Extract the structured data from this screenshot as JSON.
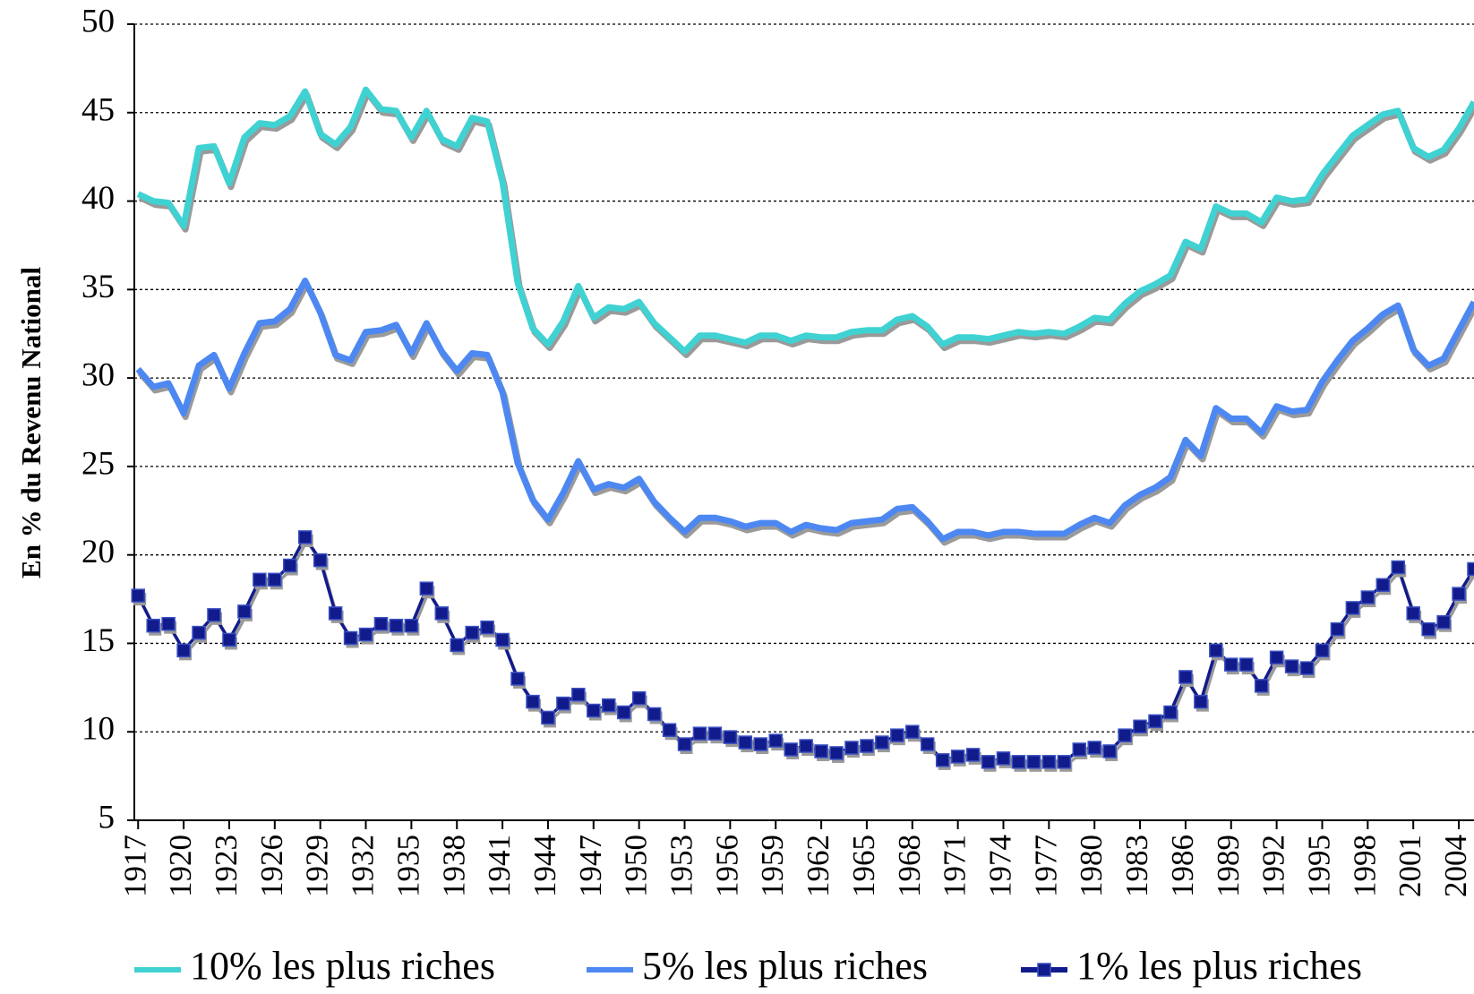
{
  "chart_data": {
    "type": "line",
    "y_label": "En % du Revenu National",
    "x": [
      1917,
      1918,
      1919,
      1920,
      1921,
      1922,
      1923,
      1924,
      1925,
      1926,
      1927,
      1928,
      1929,
      1930,
      1931,
      1932,
      1933,
      1934,
      1935,
      1936,
      1937,
      1938,
      1939,
      1940,
      1941,
      1942,
      1943,
      1944,
      1945,
      1946,
      1947,
      1948,
      1949,
      1950,
      1951,
      1952,
      1953,
      1954,
      1955,
      1956,
      1957,
      1958,
      1959,
      1960,
      1961,
      1962,
      1963,
      1964,
      1965,
      1966,
      1967,
      1968,
      1969,
      1970,
      1971,
      1972,
      1973,
      1974,
      1975,
      1976,
      1977,
      1978,
      1979,
      1980,
      1981,
      1982,
      1983,
      1984,
      1985,
      1986,
      1987,
      1988,
      1989,
      1990,
      1991,
      1992,
      1993,
      1994,
      1995,
      1996,
      1997,
      1998,
      1999,
      2000,
      2001,
      2002,
      2003,
      2004,
      2005
    ],
    "series": [
      {
        "name": "10% les plus riches",
        "color": "#40d2d2",
        "marker": "none",
        "values": [
          40.4,
          40.0,
          39.9,
          38.6,
          43.0,
          43.1,
          41.0,
          43.6,
          44.4,
          44.3,
          44.8,
          46.2,
          43.8,
          43.2,
          44.2,
          46.3,
          45.2,
          45.1,
          43.6,
          45.1,
          43.5,
          43.1,
          44.7,
          44.5,
          41.1,
          35.4,
          32.8,
          31.9,
          33.2,
          35.2,
          33.4,
          34.0,
          33.9,
          34.3,
          33.1,
          32.3,
          31.5,
          32.4,
          32.4,
          32.2,
          32.0,
          32.4,
          32.4,
          32.1,
          32.4,
          32.3,
          32.3,
          32.6,
          32.7,
          32.7,
          33.3,
          33.5,
          32.9,
          31.9,
          32.3,
          32.3,
          32.2,
          32.4,
          32.6,
          32.5,
          32.6,
          32.5,
          32.9,
          33.4,
          33.3,
          34.2,
          34.9,
          35.3,
          35.8,
          37.7,
          37.3,
          39.7,
          39.3,
          39.3,
          38.8,
          40.2,
          40.0,
          40.1,
          41.5,
          42.6,
          43.7,
          44.3,
          44.9,
          45.1,
          43.0,
          42.5,
          42.9,
          44.1,
          45.6
        ]
      },
      {
        "name": "5% les plus riches",
        "color": "#4d88f2",
        "marker": "none",
        "values": [
          30.5,
          29.5,
          29.7,
          28.0,
          30.7,
          31.3,
          29.4,
          31.4,
          33.1,
          33.2,
          33.9,
          35.5,
          33.7,
          31.3,
          31.0,
          32.6,
          32.7,
          33.0,
          31.4,
          33.1,
          31.5,
          30.4,
          31.4,
          31.3,
          29.2,
          25.2,
          23.1,
          22.0,
          23.5,
          25.3,
          23.7,
          24.0,
          23.8,
          24.3,
          23.0,
          22.1,
          21.3,
          22.1,
          22.1,
          21.9,
          21.6,
          21.8,
          21.8,
          21.3,
          21.7,
          21.5,
          21.4,
          21.8,
          21.9,
          22.0,
          22.6,
          22.7,
          21.9,
          20.9,
          21.3,
          21.3,
          21.1,
          21.3,
          21.3,
          21.2,
          21.2,
          21.2,
          21.7,
          22.1,
          21.8,
          22.8,
          23.4,
          23.8,
          24.4,
          26.5,
          25.6,
          28.3,
          27.7,
          27.7,
          26.9,
          28.4,
          28.1,
          28.2,
          29.8,
          31.0,
          32.1,
          32.8,
          33.6,
          34.1,
          31.6,
          30.7,
          31.1,
          32.7,
          34.3
        ]
      },
      {
        "name": "1% les plus riches",
        "color": "#111b8c",
        "marker": "square",
        "values": [
          17.7,
          16.0,
          16.1,
          14.6,
          15.6,
          16.6,
          15.2,
          16.8,
          18.6,
          18.6,
          19.4,
          21.0,
          19.7,
          16.7,
          15.3,
          15.5,
          16.1,
          16.0,
          16.0,
          18.1,
          16.7,
          14.9,
          15.6,
          15.9,
          15.2,
          13.0,
          11.7,
          10.8,
          11.6,
          12.1,
          11.2,
          11.5,
          11.1,
          11.9,
          11.0,
          10.1,
          9.3,
          9.9,
          9.9,
          9.7,
          9.4,
          9.3,
          9.5,
          9.0,
          9.2,
          8.9,
          8.8,
          9.1,
          9.2,
          9.4,
          9.8,
          10.0,
          9.3,
          8.4,
          8.6,
          8.7,
          8.3,
          8.5,
          8.3,
          8.3,
          8.3,
          8.3,
          9.0,
          9.1,
          8.9,
          9.8,
          10.3,
          10.6,
          11.1,
          13.1,
          11.7,
          14.6,
          13.8,
          13.8,
          12.6,
          14.2,
          13.7,
          13.6,
          14.6,
          15.8,
          17.0,
          17.6,
          18.3,
          19.3,
          16.7,
          15.8,
          16.2,
          17.8,
          19.2
        ]
      }
    ],
    "xlim": [
      1916.75,
      2005
    ],
    "xticks": [
      1917,
      1920,
      1923,
      1926,
      1929,
      1932,
      1935,
      1938,
      1941,
      1944,
      1947,
      1950,
      1953,
      1956,
      1959,
      1962,
      1965,
      1968,
      1971,
      1974,
      1977,
      1980,
      1983,
      1986,
      1989,
      1992,
      1995,
      1998,
      2001,
      2004
    ],
    "ylim": [
      5,
      50
    ],
    "yticks": [
      5,
      10,
      15,
      20,
      25,
      30,
      35,
      40,
      45,
      50
    ],
    "grid": true,
    "legend": "bottom"
  }
}
